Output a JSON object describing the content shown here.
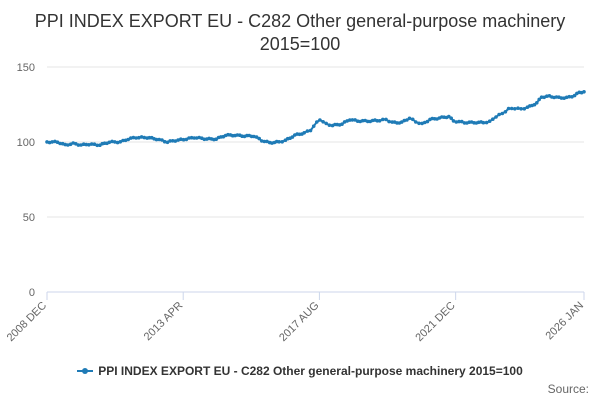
{
  "chart_data": {
    "type": "line",
    "title": "PPI INDEX EXPORT EU - C282 Other general-purpose machinery 2015=100",
    "xlabel": "",
    "ylabel": "",
    "ylim": [
      0,
      150
    ],
    "yticks": [
      0,
      50,
      100,
      150
    ],
    "xticks": [
      {
        "label": "2008 DEC",
        "t": 2008.917
      },
      {
        "label": "2013 APR",
        "t": 2013.25
      },
      {
        "label": "2017 AUG",
        "t": 2017.583
      },
      {
        "label": "2021 DEC",
        "t": 2021.917
      },
      {
        "label": "2026 JAN",
        "t": 2026.0
      }
    ],
    "xlim": [
      2008.917,
      2026.0
    ],
    "grid": true,
    "legend_position": "bottom-center",
    "series": [
      {
        "name": "PPI INDEX EXPORT EU - C282 Other general-purpose machinery 2015=100",
        "color": "#1f7bb6",
        "points": [
          [
            2008.917,
            100
          ],
          [
            2009.25,
            100
          ],
          [
            2009.5,
            98
          ],
          [
            2009.75,
            99
          ],
          [
            2010.0,
            98
          ],
          [
            2010.25,
            98.5
          ],
          [
            2010.6,
            98
          ],
          [
            2010.9,
            100
          ],
          [
            2011.25,
            100
          ],
          [
            2011.5,
            102
          ],
          [
            2011.75,
            103
          ],
          [
            2012.1,
            103
          ],
          [
            2012.4,
            102
          ],
          [
            2012.75,
            100
          ],
          [
            2013.0,
            101
          ],
          [
            2013.35,
            102
          ],
          [
            2013.6,
            103
          ],
          [
            2014.0,
            102
          ],
          [
            2014.3,
            102
          ],
          [
            2014.6,
            104.5
          ],
          [
            2014.9,
            104.5
          ],
          [
            2015.2,
            104
          ],
          [
            2015.5,
            104
          ],
          [
            2015.75,
            101
          ],
          [
            2016.0,
            99.5
          ],
          [
            2016.3,
            100
          ],
          [
            2016.5,
            101
          ],
          [
            2016.8,
            104.5
          ],
          [
            2017.1,
            106
          ],
          [
            2017.3,
            108
          ],
          [
            2017.5,
            113
          ],
          [
            2017.6,
            115
          ],
          [
            2017.8,
            112
          ],
          [
            2018.0,
            111
          ],
          [
            2018.3,
            112
          ],
          [
            2018.55,
            115
          ],
          [
            2018.8,
            114
          ],
          [
            2019.2,
            114
          ],
          [
            2019.5,
            114.5
          ],
          [
            2019.7,
            115
          ],
          [
            2019.9,
            113
          ],
          [
            2020.2,
            113
          ],
          [
            2020.45,
            116
          ],
          [
            2020.65,
            113.5
          ],
          [
            2020.85,
            112
          ],
          [
            2021.1,
            115
          ],
          [
            2021.4,
            116
          ],
          [
            2021.7,
            117
          ],
          [
            2021.85,
            114
          ],
          [
            2022.2,
            113
          ],
          [
            2022.5,
            113
          ],
          [
            2022.8,
            113
          ],
          [
            2023.0,
            113.5
          ],
          [
            2023.2,
            117
          ],
          [
            2023.4,
            119
          ],
          [
            2023.6,
            122
          ],
          [
            2023.8,
            122.5
          ],
          [
            2024.0,
            122
          ],
          [
            2024.2,
            123
          ],
          [
            2024.5,
            126
          ],
          [
            2024.65,
            130
          ],
          [
            2024.9,
            130.5
          ],
          [
            2025.2,
            129.5
          ],
          [
            2025.45,
            129.5
          ],
          [
            2025.7,
            131
          ],
          [
            2025.85,
            133
          ],
          [
            2026.0,
            133.5
          ]
        ]
      }
    ],
    "source_label": "Source:"
  }
}
